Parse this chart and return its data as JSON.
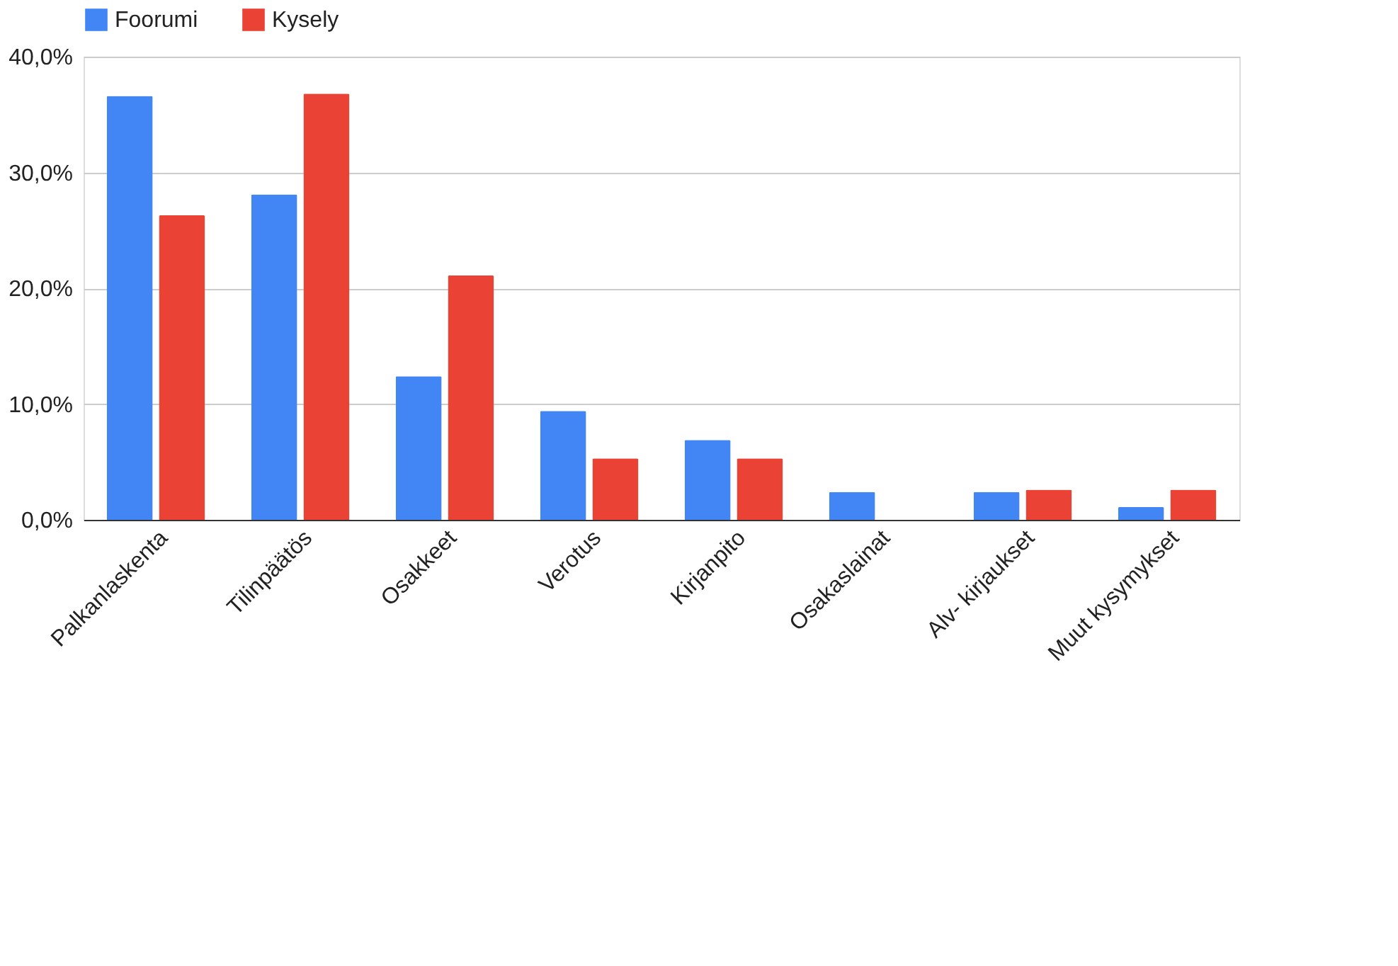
{
  "chart_data": {
    "type": "bar",
    "categories": [
      "Palkanlaskenta",
      "Tilinpäätös",
      "Osakkeet",
      "Verotus",
      "Kirjanpito",
      "Osakaslainat",
      "Alv- kirjaukset",
      "Muut kysymykset"
    ],
    "series": [
      {
        "name": "Foorumi",
        "color": "#4285f4",
        "values": [
          36.6,
          28.1,
          12.4,
          9.4,
          6.9,
          2.4,
          2.4,
          1.1
        ]
      },
      {
        "name": "Kysely",
        "color": "#ea4335",
        "values": [
          26.3,
          36.8,
          21.1,
          5.3,
          5.3,
          0,
          2.6,
          2.6
        ]
      }
    ],
    "ylim": [
      0,
      40
    ],
    "yticks": [
      {
        "value": 0,
        "label": "0,0%"
      },
      {
        "value": 10,
        "label": "10,0%"
      },
      {
        "value": 20,
        "label": "20,0%"
      },
      {
        "value": 30,
        "label": "30,0%"
      },
      {
        "value": 40,
        "label": "40,0%"
      }
    ],
    "grid": "y",
    "legend": "top"
  }
}
